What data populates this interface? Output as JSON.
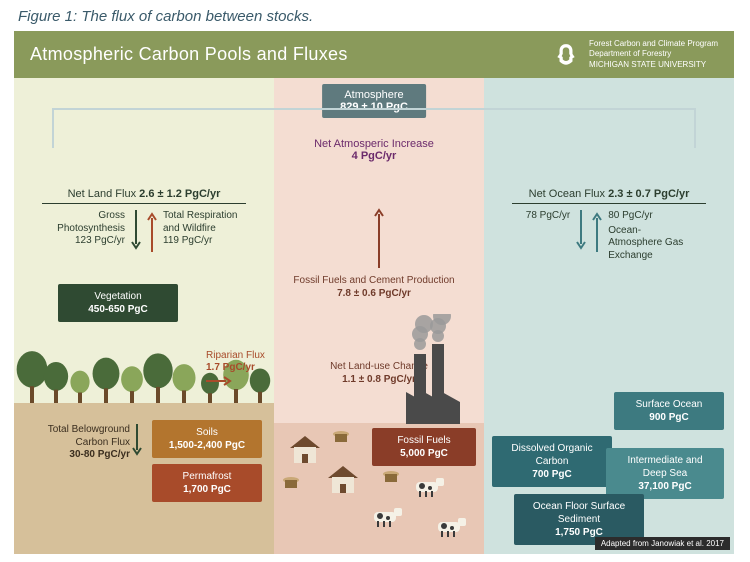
{
  "caption": "Figure 1: The flux of carbon between stocks.",
  "header": {
    "title": "Atmospheric Carbon Pools and Fluxes",
    "bg_color": "#8a9a5b",
    "org_line1": "Forest Carbon and Climate Program",
    "org_line2": "Department of Forestry",
    "org_line3": "MICHIGAN STATE UNIVERSITY"
  },
  "colors": {
    "land_upper": "#eef0d8",
    "land_lower": "#d6c09a",
    "human_upper": "#f4ddd2",
    "human_lower": "#e8c7b5",
    "ocean": "#cfe2de",
    "atmo_box": "#5f7a7e",
    "bracket": "#c2d4d6",
    "net_atmo": "#6b2a6b",
    "veg_badge": "#2f4a32",
    "soil_badge": "#b3752e",
    "perma_badge": "#a84b2a",
    "ff_badge": "#8a3d28",
    "ocean_badge1": "#3d7a80",
    "ocean_badge2": "#2f6a72",
    "ocean_badge3": "#4a8a8e",
    "ocean_badge4": "#2a5a62",
    "tree_dark": "#4a6b3a",
    "tree_light": "#8aa65a",
    "trunk": "#6b4a2a",
    "factory": "#4a4a4a",
    "smoke": "#9a9a9a",
    "house_roof": "#6e4a2e",
    "house_wall": "#efe6d6",
    "cow": "#f5f1e6",
    "cow_spot": "#3a3a3a",
    "arrow_land": "#2f4a32",
    "arrow_fire": "#a84b2a",
    "arrow_ocean": "#3d7a80"
  },
  "atmosphere": {
    "label": "Atmosphere",
    "value": "829 ± 10 PgC"
  },
  "net_atmo": {
    "label": "Net Atmosperic Increase",
    "value": "4 PgC/yr"
  },
  "land": {
    "net_label": "Net Land Flux",
    "net_value": "2.6 ± 1.2 PgC/yr",
    "down_label": "Gross Photosynthesis",
    "down_value": "123 PgC/yr",
    "up_label": "Total Respiration and Wildfire",
    "up_value": "119 PgC/yr",
    "veg_label": "Vegetation",
    "veg_value": "450-650 PgC",
    "riparian_label": "Riparian Flux",
    "riparian_value": "1.7 PgC/yr",
    "bg_label": "Total Belowground Carbon Flux",
    "bg_value": "30-80 PgC/yr",
    "soil_label": "Soils",
    "soil_value": "1,500-2,400 PgC",
    "perma_label": "Permafrost",
    "perma_value": "1,700 PgC"
  },
  "human": {
    "lu_label": "Net Land-use Change",
    "lu_value": "1.1 ± 0.8 PgC/yr",
    "ff_flux_label": "Fossil Fuels and Cement Production",
    "ff_flux_value": "7.8 ± 0.6 PgC/yr",
    "ff_label": "Fossil Fuels",
    "ff_value": "5,000 PgC"
  },
  "ocean": {
    "net_label": "Net Ocean Flux",
    "net_value": "2.3 ± 0.7 PgC/yr",
    "down_value": "78 PgC/yr",
    "up_value": "80 PgC/yr",
    "exch_label": "Ocean-Atmosphere Gas Exchange",
    "surf_label": "Surface Ocean",
    "surf_value": "900 PgC",
    "doc_label": "Dissolved Organic Carbon",
    "doc_value": "700 PgC",
    "deep_label": "Intermediate and Deep Sea",
    "deep_value": "37,100 PgC",
    "sed_label": "Ocean Floor Surface Sediment",
    "sed_value": "1,750 PgC"
  },
  "attribution": "Adapted from Janowiak et al. 2017"
}
